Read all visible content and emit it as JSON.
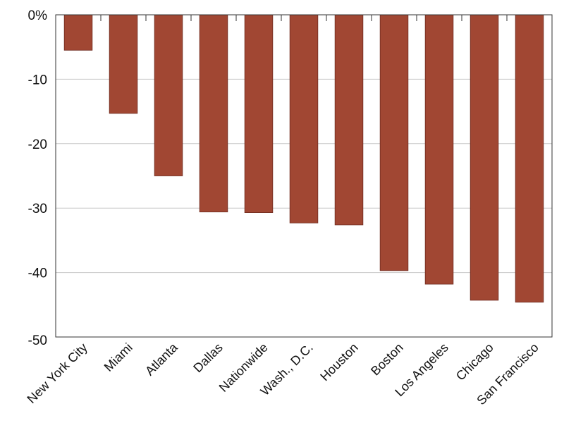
{
  "chart_data": {
    "type": "bar",
    "title": "",
    "xlabel": "",
    "ylabel": "",
    "ylim": [
      -50,
      0
    ],
    "yticks": [
      0,
      -10,
      -20,
      -30,
      -40,
      -50
    ],
    "ytick_labels": [
      "0%",
      "-10",
      "-20",
      "-30",
      "-40",
      "-50"
    ],
    "grid": true,
    "categories": [
      "New York City",
      "Miami",
      "Atlanta",
      "Dallas",
      "Nationwide",
      "Wash., D.C.",
      "Houston",
      "Boston",
      "Los Angeles",
      "Chicago",
      "San Francisco"
    ],
    "values": [
      -5.5,
      -15.3,
      -25.0,
      -30.6,
      -30.7,
      -32.3,
      -32.6,
      -39.7,
      -41.8,
      -44.3,
      -44.6
    ]
  },
  "colors": {
    "bar": "#a14733",
    "bar_edge": "#6e2a1e",
    "grid": "#c8c8c8",
    "axis": "#333333"
  }
}
